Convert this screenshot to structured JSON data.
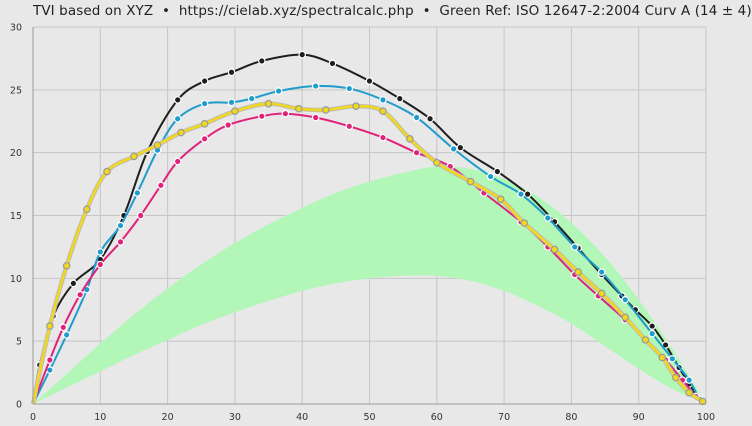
{
  "chart_data": {
    "type": "line",
    "title": "TVI based on XYZ  •  https://cielab.xyz/spectralcalc.php  •  Green Ref: ISO 12647-2:2004 Curv A (14 ± 4)",
    "xlabel": "",
    "ylabel": "",
    "xlim": [
      0,
      100
    ],
    "ylim": [
      0,
      30
    ],
    "x_ticks": [
      0,
      10,
      20,
      30,
      40,
      50,
      60,
      70,
      80,
      90,
      100
    ],
    "y_ticks": [
      0,
      5,
      10,
      15,
      20,
      25,
      30
    ],
    "grid": true,
    "legend": "none",
    "reference_band": {
      "color": "#b2f7b8",
      "x": [
        0,
        5,
        10,
        15,
        20,
        25,
        30,
        35,
        40,
        45,
        50,
        55,
        60,
        65,
        70,
        75,
        80,
        85,
        90,
        95,
        100
      ],
      "upper": [
        0,
        2.4,
        4.8,
        7.1,
        9.2,
        11.1,
        12.8,
        14.3,
        15.6,
        16.8,
        17.7,
        18.4,
        18.9,
        18.7,
        17.9,
        16.5,
        14.4,
        11.7,
        8.3,
        4.4,
        0
      ],
      "lower": [
        0,
        1.3,
        2.6,
        3.9,
        5.1,
        6.3,
        7.3,
        8.2,
        9.0,
        9.6,
        10.0,
        10.2,
        10.2,
        9.8,
        9.0,
        7.8,
        6.4,
        4.6,
        2.8,
        1.2,
        0
      ]
    },
    "series": [
      {
        "color": "#1e1e1e",
        "x": [
          0,
          1,
          3,
          6,
          10,
          13.5,
          17,
          21.5,
          25.5,
          29.5,
          34,
          40,
          44.5,
          50,
          54.5,
          59,
          63.5,
          69,
          73.5,
          77.5,
          81,
          84.5,
          87.5,
          89.5,
          92,
          94,
          96,
          97.5,
          99
        ],
        "y": [
          0,
          3.1,
          7.0,
          9.6,
          11.5,
          15.0,
          20.1,
          24.2,
          25.7,
          26.4,
          27.3,
          27.8,
          27.1,
          25.7,
          24.3,
          22.7,
          20.4,
          18.5,
          16.7,
          14.5,
          12.4,
          10.3,
          8.6,
          7.5,
          6.2,
          4.7,
          2.9,
          1.6,
          0.4
        ]
      },
      {
        "color": "#1e9ccc",
        "x": [
          0,
          2.5,
          5,
          8,
          10,
          13,
          15.5,
          18.5,
          21.5,
          25.5,
          29.5,
          32.5,
          36.5,
          42,
          47,
          52,
          57,
          62.5,
          68,
          72.5,
          76.5,
          80.5,
          84.5,
          88,
          92,
          95,
          97.5,
          99
        ],
        "y": [
          0,
          2.7,
          5.5,
          9.1,
          12.1,
          14.2,
          16.8,
          20.2,
          22.7,
          23.9,
          24.0,
          24.3,
          24.9,
          25.3,
          25.1,
          24.2,
          22.8,
          20.3,
          18.1,
          16.7,
          14.8,
          12.5,
          10.5,
          8.3,
          5.6,
          3.6,
          1.9,
          0.4
        ]
      },
      {
        "color": "#e0227a",
        "x": [
          0,
          2.5,
          4.5,
          7,
          10,
          13,
          16,
          19,
          21.5,
          25.5,
          29,
          34,
          37.5,
          42,
          47,
          52,
          57,
          62,
          67,
          72.5,
          76.5,
          80.5,
          84,
          88,
          91,
          94,
          96.5,
          98.5
        ],
        "y": [
          0,
          3.5,
          6.1,
          8.7,
          11.1,
          12.9,
          15.0,
          17.4,
          19.3,
          21.1,
          22.2,
          22.9,
          23.1,
          22.8,
          22.1,
          21.2,
          20.0,
          18.9,
          16.8,
          14.5,
          12.5,
          10.3,
          8.6,
          6.7,
          5.1,
          3.5,
          1.9,
          0.6
        ]
      },
      {
        "color": "#f2d81c",
        "x": [
          0,
          2.5,
          5,
          8,
          11,
          15,
          18.5,
          22,
          25.5,
          30,
          35,
          39.5,
          43.5,
          48,
          52,
          56,
          60,
          65,
          69.5,
          73,
          77.5,
          81,
          84.5,
          88,
          91,
          93.5,
          95.5,
          97.5,
          99.5
        ],
        "y": [
          0,
          6.2,
          11.0,
          15.5,
          18.5,
          19.7,
          20.6,
          21.6,
          22.3,
          23.3,
          23.9,
          23.5,
          23.4,
          23.7,
          23.3,
          21.1,
          19.2,
          17.7,
          16.3,
          14.4,
          12.3,
          10.5,
          8.8,
          6.9,
          5.1,
          3.7,
          2.1,
          0.9,
          0.2
        ]
      }
    ]
  }
}
